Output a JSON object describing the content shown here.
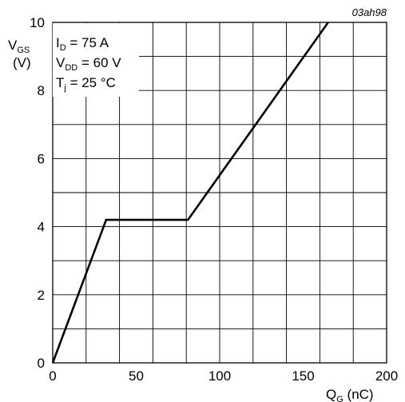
{
  "chart_data": {
    "type": "line",
    "figure_code": "03ah98",
    "ylabel": {
      "main": "V",
      "sub": "GS",
      "unit": "(V)"
    },
    "xlabel": {
      "main": "Q",
      "sub": "G",
      "unit": "(nC)"
    },
    "xlim": [
      0,
      200
    ],
    "ylim": [
      0,
      10
    ],
    "x_ticks": [
      "0",
      "50",
      "100",
      "150",
      "200"
    ],
    "y_ticks": [
      "0",
      "2",
      "4",
      "6",
      "8",
      "10"
    ],
    "grid": true,
    "conditions": [
      {
        "main": "I",
        "sub": "D",
        "rest": " = 75 A"
      },
      {
        "main": "V",
        "sub": "DD",
        "rest": " = 60 V"
      },
      {
        "main": "T",
        "sub": "j",
        "rest": " = 25 °C"
      }
    ],
    "series": [
      {
        "x": [
          0,
          32,
          81,
          165
        ],
        "y": [
          0,
          4.2,
          4.2,
          10
        ]
      }
    ],
    "line_color": "#000000"
  }
}
